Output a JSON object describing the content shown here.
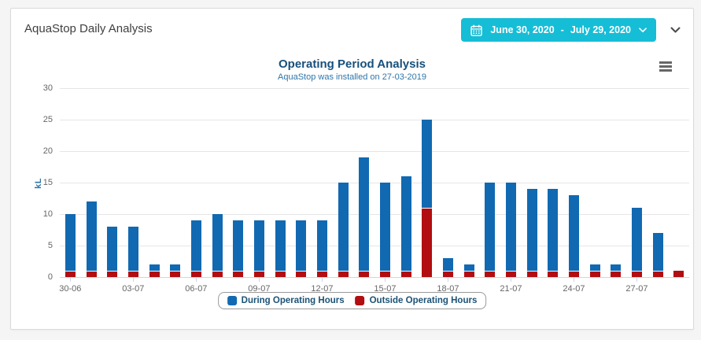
{
  "header": {
    "title": "AquaStop Daily Analysis"
  },
  "date_picker": {
    "start": "June 30, 2020",
    "separator": "-",
    "end": "July 29, 2020",
    "button_color": "#16bdd6"
  },
  "chart": {
    "title": "Operating Period Analysis",
    "subtitle": "AquaStop was installed on 27-03-2019",
    "title_color": "#17507c",
    "subtitle_color": "#2e75a9"
  },
  "chart_data": {
    "type": "bar",
    "stacked": true,
    "title": "Operating Period Analysis",
    "subtitle": "AquaStop was installed on 27-03-2019",
    "xlabel": "",
    "ylabel": "kL",
    "ylim": [
      0,
      30
    ],
    "yticks": [
      0,
      5,
      10,
      15,
      20,
      25,
      30
    ],
    "grid": true,
    "grid_color": "#e6e6e6",
    "axis_line_color": "#ccd6eb",
    "tick_label_color": "#666666",
    "legend_position": "bottom",
    "xtick_every": 3,
    "categories": [
      "30-06",
      "01-07",
      "02-07",
      "03-07",
      "04-07",
      "05-07",
      "06-07",
      "07-07",
      "08-07",
      "09-07",
      "10-07",
      "11-07",
      "12-07",
      "13-07",
      "14-07",
      "15-07",
      "16-07",
      "17-07",
      "18-07",
      "19-07",
      "20-07",
      "21-07",
      "22-07",
      "23-07",
      "24-07",
      "25-07",
      "26-07",
      "27-07",
      "28-07",
      "29-07"
    ],
    "series": [
      {
        "name": "During Operating Hours",
        "color": "#1169b2",
        "values": [
          9,
          11,
          7,
          7,
          1,
          1,
          8,
          9,
          8,
          8,
          8,
          8,
          8,
          14,
          18,
          14,
          15,
          14,
          2,
          1,
          14,
          14,
          13,
          13,
          12,
          1,
          1,
          10,
          6,
          0
        ]
      },
      {
        "name": "Outside Operating Hours",
        "color": "#b20d10",
        "values": [
          1,
          1,
          1,
          1,
          1,
          1,
          1,
          1,
          1,
          1,
          1,
          1,
          1,
          1,
          1,
          1,
          1,
          11,
          1,
          1,
          1,
          1,
          1,
          1,
          1,
          1,
          1,
          1,
          1,
          1
        ]
      }
    ]
  }
}
